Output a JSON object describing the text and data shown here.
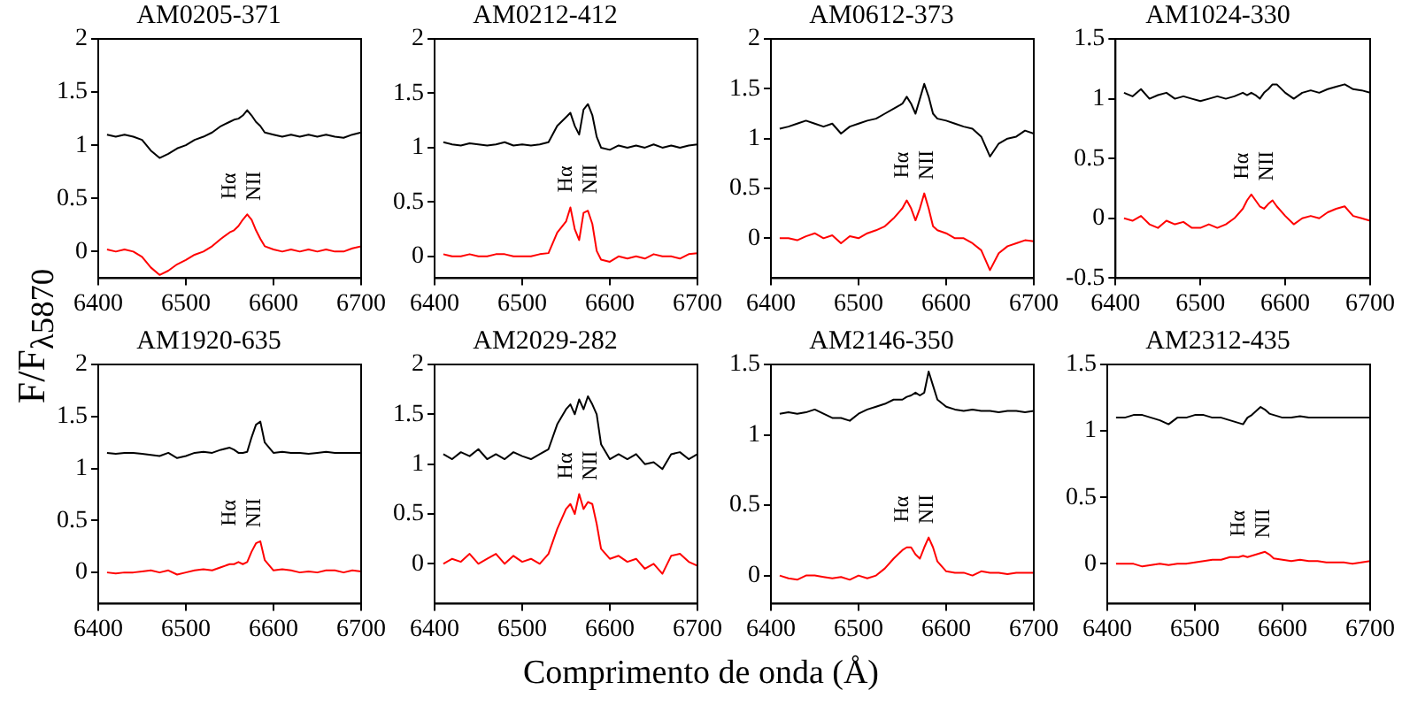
{
  "chart_data": [
    {
      "type": "line",
      "title": "AM0205-371",
      "xlabel": "Comprimento de onda (Å)",
      "ylabel": "F/F$_{λ5870}$",
      "marker": "none",
      "xlim": [
        6400,
        6700
      ],
      "xticks": [
        6400,
        6500,
        6600,
        6700
      ],
      "ylim": [
        -0.25,
        2
      ],
      "yticks": [
        0,
        0.5,
        1,
        1.5,
        2
      ],
      "x": [
        6410,
        6420,
        6430,
        6440,
        6450,
        6460,
        6470,
        6480,
        6490,
        6500,
        6510,
        6520,
        6530,
        6540,
        6550,
        6555,
        6560,
        6565,
        6570,
        6575,
        6580,
        6585,
        6590,
        6600,
        6610,
        6620,
        6630,
        6640,
        6650,
        6660,
        6670,
        6680,
        6690,
        6700
      ],
      "series": [
        {
          "color": "#000000",
          "values": [
            1.1,
            1.08,
            1.1,
            1.08,
            1.05,
            0.95,
            0.88,
            0.92,
            0.97,
            1.0,
            1.05,
            1.08,
            1.12,
            1.18,
            1.22,
            1.24,
            1.25,
            1.28,
            1.33,
            1.28,
            1.22,
            1.18,
            1.12,
            1.1,
            1.08,
            1.1,
            1.08,
            1.1,
            1.08,
            1.1,
            1.08,
            1.07,
            1.1,
            1.12
          ]
        },
        {
          "color": "#ff0000",
          "values": [
            0.02,
            0.0,
            0.02,
            0.0,
            -0.05,
            -0.15,
            -0.22,
            -0.18,
            -0.12,
            -0.08,
            -0.03,
            0.0,
            0.05,
            0.12,
            0.18,
            0.2,
            0.24,
            0.3,
            0.35,
            0.3,
            0.2,
            0.12,
            0.05,
            0.02,
            0.0,
            0.02,
            0.0,
            0.02,
            0.0,
            0.02,
            0.0,
            0.0,
            0.03,
            0.05
          ]
        }
      ],
      "annotations": [
        "Hα",
        "NII"
      ]
    },
    {
      "type": "line",
      "title": "AM0212-412",
      "marker": "none",
      "xlim": [
        6400,
        6700
      ],
      "xticks": [
        6400,
        6500,
        6600,
        6700
      ],
      "ylim": [
        -0.2,
        2
      ],
      "yticks": [
        0,
        0.5,
        1,
        1.5,
        2
      ],
      "x": [
        6410,
        6420,
        6430,
        6440,
        6450,
        6460,
        6470,
        6480,
        6490,
        6500,
        6510,
        6520,
        6530,
        6540,
        6550,
        6555,
        6560,
        6565,
        6570,
        6575,
        6580,
        6585,
        6590,
        6600,
        6610,
        6620,
        6630,
        6640,
        6650,
        6660,
        6670,
        6680,
        6690,
        6700
      ],
      "series": [
        {
          "color": "#000000",
          "values": [
            1.05,
            1.03,
            1.02,
            1.04,
            1.03,
            1.02,
            1.03,
            1.05,
            1.02,
            1.03,
            1.02,
            1.03,
            1.05,
            1.2,
            1.28,
            1.32,
            1.2,
            1.12,
            1.35,
            1.4,
            1.3,
            1.1,
            1.0,
            0.98,
            1.02,
            1.0,
            1.02,
            1.0,
            1.03,
            1.0,
            1.02,
            1.0,
            1.02,
            1.03
          ]
        },
        {
          "color": "#ff0000",
          "values": [
            0.02,
            0.0,
            0.0,
            0.02,
            0.0,
            0.0,
            0.02,
            0.02,
            0.0,
            0.0,
            0.0,
            0.02,
            0.03,
            0.22,
            0.32,
            0.45,
            0.25,
            0.15,
            0.4,
            0.42,
            0.3,
            0.05,
            -0.03,
            -0.05,
            0.0,
            -0.02,
            0.0,
            -0.02,
            0.02,
            0.0,
            0.0,
            -0.02,
            0.02,
            0.03
          ]
        }
      ],
      "annotations": [
        "Hα",
        "NII"
      ]
    },
    {
      "type": "line",
      "title": "AM0612-373",
      "marker": "none",
      "xlim": [
        6400,
        6700
      ],
      "xticks": [
        6400,
        6500,
        6600,
        6700
      ],
      "ylim": [
        -0.4,
        2
      ],
      "yticks": [
        0,
        0.5,
        1,
        1.5,
        2
      ],
      "x": [
        6410,
        6420,
        6430,
        6440,
        6450,
        6460,
        6470,
        6480,
        6490,
        6500,
        6510,
        6520,
        6530,
        6540,
        6550,
        6555,
        6560,
        6565,
        6570,
        6575,
        6580,
        6585,
        6590,
        6600,
        6610,
        6620,
        6630,
        6640,
        6650,
        6660,
        6670,
        6680,
        6690,
        6700
      ],
      "series": [
        {
          "color": "#000000",
          "values": [
            1.1,
            1.12,
            1.15,
            1.18,
            1.15,
            1.12,
            1.15,
            1.05,
            1.12,
            1.15,
            1.18,
            1.2,
            1.25,
            1.3,
            1.35,
            1.42,
            1.35,
            1.25,
            1.4,
            1.55,
            1.42,
            1.25,
            1.2,
            1.18,
            1.15,
            1.12,
            1.1,
            1.02,
            0.82,
            0.95,
            1.0,
            1.02,
            1.08,
            1.05
          ]
        },
        {
          "color": "#ff0000",
          "values": [
            0.0,
            0.0,
            -0.02,
            0.02,
            0.05,
            0.0,
            0.03,
            -0.05,
            0.02,
            0.0,
            0.05,
            0.08,
            0.12,
            0.2,
            0.3,
            0.38,
            0.3,
            0.18,
            0.3,
            0.45,
            0.3,
            0.12,
            0.08,
            0.05,
            0.0,
            0.0,
            -0.05,
            -0.12,
            -0.32,
            -0.15,
            -0.08,
            -0.05,
            -0.02,
            -0.03
          ]
        }
      ],
      "annotations": [
        "Hα",
        "NII"
      ]
    },
    {
      "type": "line",
      "title": "AM1024-330",
      "marker": "none",
      "xlim": [
        6400,
        6700
      ],
      "xticks": [
        6400,
        6500,
        6600,
        6700
      ],
      "ylim": [
        -0.5,
        1.5
      ],
      "yticks": [
        -0.5,
        0,
        0.5,
        1,
        1.5
      ],
      "x": [
        6410,
        6420,
        6430,
        6440,
        6450,
        6460,
        6470,
        6480,
        6490,
        6500,
        6510,
        6520,
        6530,
        6540,
        6550,
        6555,
        6560,
        6565,
        6570,
        6575,
        6580,
        6585,
        6590,
        6600,
        6610,
        6620,
        6630,
        6640,
        6650,
        6660,
        6670,
        6680,
        6690,
        6700
      ],
      "series": [
        {
          "color": "#000000",
          "values": [
            1.05,
            1.02,
            1.08,
            1.0,
            1.03,
            1.05,
            1.0,
            1.02,
            1.0,
            0.98,
            1.0,
            1.02,
            1.0,
            1.02,
            1.05,
            1.03,
            1.05,
            1.03,
            1.0,
            1.05,
            1.08,
            1.12,
            1.12,
            1.05,
            1.0,
            1.05,
            1.07,
            1.05,
            1.08,
            1.1,
            1.12,
            1.08,
            1.07,
            1.05
          ]
        },
        {
          "color": "#ff0000",
          "values": [
            0.0,
            -0.02,
            0.02,
            -0.05,
            -0.08,
            -0.02,
            -0.05,
            -0.03,
            -0.08,
            -0.08,
            -0.05,
            -0.08,
            -0.05,
            0.0,
            0.08,
            0.15,
            0.2,
            0.15,
            0.1,
            0.08,
            0.12,
            0.15,
            0.1,
            0.02,
            -0.05,
            0.0,
            0.02,
            0.0,
            0.05,
            0.08,
            0.1,
            0.02,
            0.0,
            -0.02
          ]
        }
      ],
      "annotations": [
        "Hα",
        "NII"
      ]
    },
    {
      "type": "line",
      "title": "AM1920-635",
      "marker": "none",
      "xlim": [
        6400,
        6700
      ],
      "xticks": [
        6400,
        6500,
        6600,
        6700
      ],
      "ylim": [
        -0.3,
        2
      ],
      "yticks": [
        0,
        0.5,
        1,
        1.5,
        2
      ],
      "x": [
        6410,
        6420,
        6430,
        6440,
        6450,
        6460,
        6470,
        6480,
        6490,
        6500,
        6510,
        6520,
        6530,
        6540,
        6550,
        6555,
        6560,
        6565,
        6570,
        6575,
        6580,
        6585,
        6590,
        6600,
        6610,
        6620,
        6630,
        6640,
        6650,
        6660,
        6670,
        6680,
        6690,
        6700
      ],
      "series": [
        {
          "color": "#000000",
          "values": [
            1.15,
            1.14,
            1.15,
            1.15,
            1.14,
            1.13,
            1.12,
            1.15,
            1.1,
            1.12,
            1.15,
            1.16,
            1.15,
            1.18,
            1.2,
            1.18,
            1.15,
            1.15,
            1.16,
            1.3,
            1.42,
            1.45,
            1.25,
            1.15,
            1.16,
            1.15,
            1.15,
            1.14,
            1.15,
            1.16,
            1.15,
            1.15,
            1.15,
            1.15
          ]
        },
        {
          "color": "#ff0000",
          "values": [
            0.0,
            -0.01,
            0.0,
            0.0,
            0.01,
            0.02,
            0.0,
            0.02,
            -0.02,
            0.0,
            0.02,
            0.03,
            0.02,
            0.05,
            0.08,
            0.08,
            0.1,
            0.08,
            0.1,
            0.2,
            0.28,
            0.3,
            0.12,
            0.02,
            0.03,
            0.02,
            0.0,
            0.01,
            0.0,
            0.02,
            0.02,
            0.0,
            0.02,
            0.01
          ]
        }
      ],
      "annotations": [
        "Hα",
        "NII"
      ]
    },
    {
      "type": "line",
      "title": "AM2029-282",
      "marker": "none",
      "xlim": [
        6400,
        6700
      ],
      "xticks": [
        6400,
        6500,
        6600,
        6700
      ],
      "ylim": [
        -0.4,
        2
      ],
      "yticks": [
        0,
        0.5,
        1,
        1.5,
        2
      ],
      "x": [
        6410,
        6420,
        6430,
        6440,
        6450,
        6460,
        6470,
        6480,
        6490,
        6500,
        6510,
        6520,
        6530,
        6540,
        6550,
        6555,
        6560,
        6565,
        6570,
        6575,
        6580,
        6585,
        6590,
        6600,
        6610,
        6620,
        6630,
        6640,
        6650,
        6660,
        6670,
        6680,
        6690,
        6700
      ],
      "series": [
        {
          "color": "#000000",
          "values": [
            1.1,
            1.05,
            1.12,
            1.08,
            1.15,
            1.05,
            1.1,
            1.05,
            1.12,
            1.08,
            1.05,
            1.1,
            1.15,
            1.4,
            1.55,
            1.6,
            1.5,
            1.65,
            1.55,
            1.68,
            1.6,
            1.5,
            1.2,
            1.05,
            1.1,
            1.05,
            1.1,
            1.0,
            1.02,
            0.95,
            1.1,
            1.12,
            1.05,
            1.1
          ]
        },
        {
          "color": "#ff0000",
          "values": [
            0.0,
            0.05,
            0.02,
            0.1,
            0.0,
            0.05,
            0.1,
            0.0,
            0.08,
            0.02,
            0.05,
            0.0,
            0.1,
            0.35,
            0.55,
            0.6,
            0.5,
            0.7,
            0.55,
            0.62,
            0.6,
            0.4,
            0.15,
            0.05,
            0.08,
            0.02,
            0.05,
            -0.05,
            0.0,
            -0.1,
            0.08,
            0.1,
            0.02,
            -0.02
          ]
        }
      ],
      "annotations": [
        "Hα",
        "NII"
      ]
    },
    {
      "type": "line",
      "title": "AM2146-350",
      "marker": "none",
      "xlim": [
        6400,
        6700
      ],
      "xticks": [
        6400,
        6500,
        6600,
        6700
      ],
      "ylim": [
        -0.2,
        1.5
      ],
      "yticks": [
        0,
        0.5,
        1,
        1.5
      ],
      "x": [
        6410,
        6420,
        6430,
        6440,
        6450,
        6460,
        6470,
        6480,
        6490,
        6500,
        6510,
        6520,
        6530,
        6540,
        6550,
        6555,
        6560,
        6565,
        6570,
        6575,
        6580,
        6585,
        6590,
        6600,
        6610,
        6620,
        6630,
        6640,
        6650,
        6660,
        6670,
        6680,
        6690,
        6700
      ],
      "series": [
        {
          "color": "#000000",
          "values": [
            1.15,
            1.16,
            1.15,
            1.16,
            1.18,
            1.15,
            1.12,
            1.12,
            1.1,
            1.15,
            1.18,
            1.2,
            1.22,
            1.25,
            1.25,
            1.27,
            1.28,
            1.3,
            1.28,
            1.3,
            1.45,
            1.35,
            1.25,
            1.2,
            1.18,
            1.17,
            1.18,
            1.17,
            1.17,
            1.16,
            1.17,
            1.17,
            1.16,
            1.17
          ]
        },
        {
          "color": "#ff0000",
          "values": [
            0.0,
            -0.02,
            -0.03,
            0.0,
            0.0,
            -0.01,
            -0.02,
            -0.01,
            -0.03,
            0.0,
            -0.02,
            0.0,
            0.05,
            0.12,
            0.18,
            0.2,
            0.2,
            0.15,
            0.12,
            0.2,
            0.27,
            0.2,
            0.1,
            0.03,
            0.02,
            0.02,
            0.0,
            0.03,
            0.02,
            0.02,
            0.01,
            0.02,
            0.02,
            0.02
          ]
        }
      ],
      "annotations": [
        "Hα",
        "NII"
      ]
    },
    {
      "type": "line",
      "title": "AM2312-435",
      "marker": "none",
      "xlim": [
        6400,
        6700
      ],
      "xticks": [
        6400,
        6500,
        6600,
        6700
      ],
      "ylim": [
        -0.3,
        1.5
      ],
      "yticks": [
        0,
        0.5,
        1,
        1.5
      ],
      "x": [
        6410,
        6420,
        6430,
        6440,
        6450,
        6460,
        6470,
        6480,
        6490,
        6500,
        6510,
        6520,
        6530,
        6540,
        6550,
        6555,
        6560,
        6565,
        6570,
        6575,
        6580,
        6585,
        6590,
        6600,
        6610,
        6620,
        6630,
        6640,
        6650,
        6660,
        6670,
        6680,
        6690,
        6700
      ],
      "series": [
        {
          "color": "#000000",
          "values": [
            1.1,
            1.1,
            1.12,
            1.12,
            1.1,
            1.08,
            1.05,
            1.1,
            1.1,
            1.12,
            1.12,
            1.1,
            1.1,
            1.08,
            1.06,
            1.05,
            1.1,
            1.12,
            1.15,
            1.18,
            1.16,
            1.13,
            1.12,
            1.1,
            1.1,
            1.11,
            1.1,
            1.1,
            1.1,
            1.1,
            1.1,
            1.1,
            1.1,
            1.1
          ]
        },
        {
          "color": "#ff0000",
          "values": [
            0.0,
            0.0,
            0.0,
            -0.02,
            -0.01,
            0.0,
            -0.01,
            0.0,
            0.0,
            0.01,
            0.02,
            0.03,
            0.03,
            0.05,
            0.05,
            0.06,
            0.05,
            0.06,
            0.07,
            0.08,
            0.09,
            0.07,
            0.04,
            0.03,
            0.02,
            0.03,
            0.02,
            0.02,
            0.01,
            0.01,
            0.01,
            0.0,
            0.01,
            0.02
          ]
        }
      ],
      "annotations": [
        "Hα",
        "NII"
      ]
    }
  ]
}
